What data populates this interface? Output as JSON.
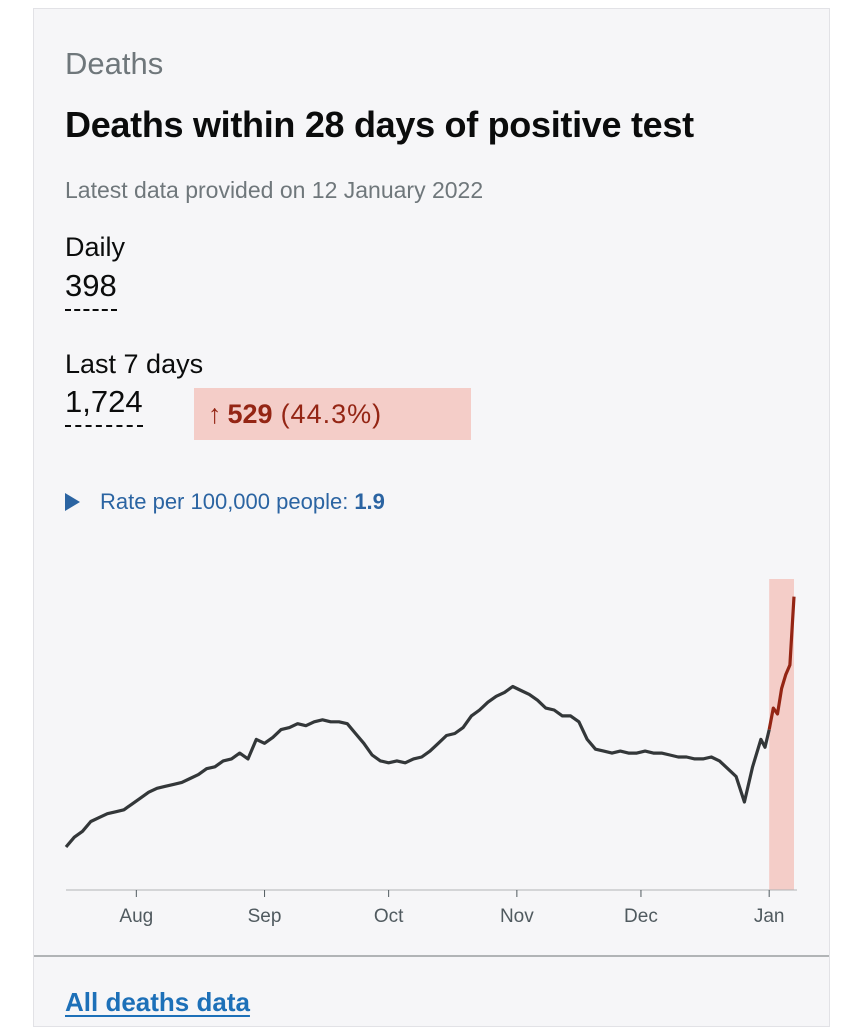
{
  "card": {
    "section_title": "Deaths",
    "title": "Deaths within 28 days of positive test",
    "latest": "Latest data provided on 12 January 2022",
    "daily_label": "Daily",
    "daily_value": "398",
    "last7_label": "Last 7 days",
    "last7_value": "1,724",
    "change": {
      "arrow": "↑",
      "value": "529",
      "percent": "(44.3%)",
      "direction": "up",
      "color": "#942514"
    },
    "rate_label": "Rate per 100,000 people:",
    "rate_value": "1.9",
    "footer_link": "All deaths data"
  },
  "chart_data": {
    "type": "line",
    "title": "",
    "xlabel": "",
    "ylabel": "",
    "x_ticks": [
      "Aug",
      "Sep",
      "Oct",
      "Nov",
      "Dec",
      "Jan"
    ],
    "x_start": "2021-07-15",
    "x_end": "2022-01-07",
    "ylim": [
      0,
      160
    ],
    "grid": false,
    "legend": "none",
    "highlight": {
      "start": "2022-01-01",
      "end": "2022-01-07",
      "color": "#f4cdc8",
      "line_color": "#942514"
    },
    "line_color": "#333739",
    "series": [
      {
        "values": [
          [
            "2021-07-15",
            22
          ],
          [
            "2021-07-17",
            27
          ],
          [
            "2021-07-19",
            30
          ],
          [
            "2021-07-21",
            35
          ],
          [
            "2021-07-23",
            37
          ],
          [
            "2021-07-25",
            39
          ],
          [
            "2021-07-27",
            40
          ],
          [
            "2021-07-29",
            41
          ],
          [
            "2021-07-31",
            44
          ],
          [
            "2021-08-02",
            47
          ],
          [
            "2021-08-04",
            50
          ],
          [
            "2021-08-06",
            52
          ],
          [
            "2021-08-08",
            53
          ],
          [
            "2021-08-10",
            54
          ],
          [
            "2021-08-12",
            55
          ],
          [
            "2021-08-14",
            57
          ],
          [
            "2021-08-16",
            59
          ],
          [
            "2021-08-18",
            62
          ],
          [
            "2021-08-20",
            63
          ],
          [
            "2021-08-22",
            66
          ],
          [
            "2021-08-24",
            67
          ],
          [
            "2021-08-26",
            70
          ],
          [
            "2021-08-28",
            67
          ],
          [
            "2021-08-30",
            77
          ],
          [
            "2021-09-01",
            75
          ],
          [
            "2021-09-03",
            78
          ],
          [
            "2021-09-05",
            82
          ],
          [
            "2021-09-07",
            83
          ],
          [
            "2021-09-09",
            85
          ],
          [
            "2021-09-11",
            84
          ],
          [
            "2021-09-13",
            86
          ],
          [
            "2021-09-15",
            87
          ],
          [
            "2021-09-17",
            86
          ],
          [
            "2021-09-19",
            86
          ],
          [
            "2021-09-21",
            85
          ],
          [
            "2021-09-23",
            80
          ],
          [
            "2021-09-25",
            75
          ],
          [
            "2021-09-27",
            69
          ],
          [
            "2021-09-29",
            66
          ],
          [
            "2021-10-01",
            65
          ],
          [
            "2021-10-03",
            66
          ],
          [
            "2021-10-05",
            65
          ],
          [
            "2021-10-07",
            67
          ],
          [
            "2021-10-09",
            68
          ],
          [
            "2021-10-11",
            71
          ],
          [
            "2021-10-13",
            75
          ],
          [
            "2021-10-15",
            79
          ],
          [
            "2021-10-17",
            80
          ],
          [
            "2021-10-19",
            83
          ],
          [
            "2021-10-21",
            89
          ],
          [
            "2021-10-23",
            92
          ],
          [
            "2021-10-25",
            96
          ],
          [
            "2021-10-27",
            99
          ],
          [
            "2021-10-29",
            101
          ],
          [
            "2021-10-31",
            104
          ],
          [
            "2021-11-02",
            102
          ],
          [
            "2021-11-04",
            100
          ],
          [
            "2021-11-06",
            97
          ],
          [
            "2021-11-08",
            93
          ],
          [
            "2021-11-10",
            92
          ],
          [
            "2021-11-12",
            89
          ],
          [
            "2021-11-14",
            89
          ],
          [
            "2021-11-16",
            86
          ],
          [
            "2021-11-18",
            77
          ],
          [
            "2021-11-20",
            72
          ],
          [
            "2021-11-22",
            71
          ],
          [
            "2021-11-24",
            70
          ],
          [
            "2021-11-26",
            71
          ],
          [
            "2021-11-28",
            70
          ],
          [
            "2021-11-30",
            70
          ],
          [
            "2021-12-02",
            71
          ],
          [
            "2021-12-04",
            70
          ],
          [
            "2021-12-06",
            70
          ],
          [
            "2021-12-08",
            69
          ],
          [
            "2021-12-10",
            68
          ],
          [
            "2021-12-12",
            68
          ],
          [
            "2021-12-14",
            67
          ],
          [
            "2021-12-16",
            67
          ],
          [
            "2021-12-18",
            68
          ],
          [
            "2021-12-20",
            66
          ],
          [
            "2021-12-22",
            62
          ],
          [
            "2021-12-24",
            58
          ],
          [
            "2021-12-26",
            45
          ],
          [
            "2021-12-28",
            63
          ],
          [
            "2021-12-30",
            77
          ],
          [
            "2021-12-31",
            73
          ],
          [
            "2022-01-01",
            82
          ],
          [
            "2022-01-02",
            93
          ],
          [
            "2022-01-03",
            90
          ],
          [
            "2022-01-04",
            103
          ],
          [
            "2022-01-05",
            110
          ],
          [
            "2022-01-06",
            115
          ],
          [
            "2022-01-07",
            150
          ]
        ]
      }
    ]
  }
}
